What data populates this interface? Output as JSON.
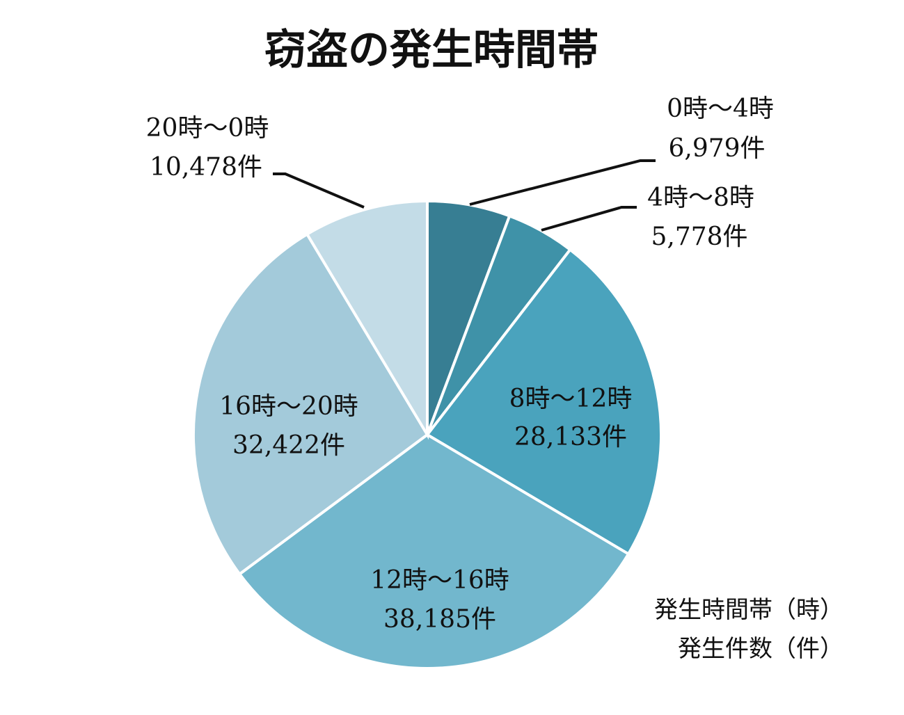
{
  "chart_data": {
    "type": "pie",
    "title": "窃盗の発生時間帯",
    "slices": [
      {
        "range": "0時～4時",
        "count_label": "6,979件",
        "value": 6979,
        "color": "#377E93"
      },
      {
        "range": "4時～8時",
        "count_label": "5,778件",
        "value": 5778,
        "color": "#3F92A8"
      },
      {
        "range": "8時～12時",
        "count_label": "28,133件",
        "value": 28133,
        "color": "#4AA3BD"
      },
      {
        "range": "12時～16時",
        "count_label": "38,185件",
        "value": 38185,
        "color": "#72B7CD"
      },
      {
        "range": "16時～20時",
        "count_label": "32,422件",
        "value": 32422,
        "color": "#A3CADA"
      },
      {
        "range": "20時～0時",
        "count_label": "10,478件",
        "value": 10478,
        "color": "#C3DCE7"
      }
    ],
    "legend_note": {
      "line1": "発生時間帯（時）",
      "line2": "発生件数（件）"
    }
  }
}
